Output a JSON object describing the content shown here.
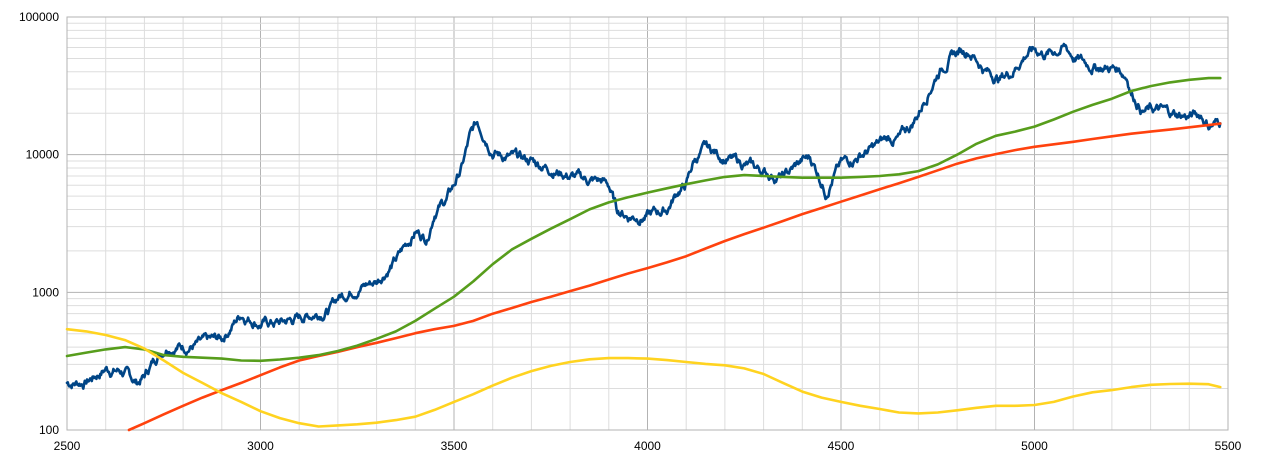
{
  "chart_data": {
    "type": "line",
    "title": "",
    "xlabel": "",
    "ylabel": "",
    "y_scale": "log",
    "xlim": [
      2500,
      5500
    ],
    "ylim": [
      100,
      100000
    ],
    "grid": true,
    "legend": "none",
    "x_ticks": [
      "2500",
      "3000",
      "3500",
      "4000",
      "4500",
      "5000",
      "5500"
    ],
    "y_ticks": [
      "100",
      "1000",
      "10000",
      "100000"
    ],
    "series": [
      {
        "color": "#004586",
        "style": "noisy",
        "x": [
          2500,
          2550,
          2600,
          2640,
          2680,
          2700,
          2730,
          2760,
          2800,
          2850,
          2900,
          2950,
          2960,
          2980,
          3000,
          3050,
          3100,
          3150,
          3180,
          3200,
          3250,
          3300,
          3320,
          3350,
          3400,
          3430,
          3450,
          3480,
          3500,
          3520,
          3540,
          3560,
          3580,
          3600,
          3620,
          3650,
          3700,
          3750,
          3800,
          3850,
          3880,
          3900,
          3920,
          3950,
          4000,
          4050,
          4080,
          4100,
          4120,
          4150,
          4170,
          4200,
          4250,
          4300,
          4350,
          4400,
          4420,
          4440,
          4460,
          4480,
          4500,
          4550,
          4580,
          4600,
          4620,
          4650,
          4680,
          4700,
          4720,
          4750,
          4780,
          4800,
          4830,
          4850,
          4870,
          4890,
          4910,
          4940,
          4980,
          5000,
          5030,
          5060,
          5080,
          5100,
          5140,
          5180,
          5220,
          5240,
          5250,
          5280,
          5320,
          5370,
          5400,
          5430,
          5450,
          5470,
          5480
        ],
        "values": [
          220,
          225,
          280,
          270,
          220,
          245,
          340,
          420,
          410,
          420,
          460,
          700,
          680,
          640,
          600,
          600,
          650,
          720,
          760,
          920,
          1100,
          1200,
          1400,
          1700,
          2800,
          2500,
          4000,
          4700,
          6000,
          8000,
          13000,
          17000,
          14000,
          11000,
          10000,
          9500,
          9000,
          8000,
          7000,
          6500,
          6400,
          6000,
          4000,
          3600,
          3600,
          4000,
          5500,
          6000,
          9000,
          11000,
          10500,
          9500,
          8500,
          7500,
          6800,
          9000,
          9500,
          7500,
          5500,
          7000,
          8500,
          10000,
          11000,
          12000,
          13000,
          13000,
          16000,
          20000,
          27000,
          40000,
          50000,
          55000,
          58000,
          50000,
          42000,
          38000,
          36000,
          40000,
          55000,
          58000,
          54000,
          58000,
          60000,
          52000,
          45000,
          43000,
          42000,
          37000,
          29000,
          21000,
          21000,
          19500,
          19000,
          19500,
          16500,
          17000,
          17500
        ]
      },
      {
        "color": "#ff420e",
        "style": "smooth",
        "x": [
          2660,
          2700,
          2750,
          2800,
          2850,
          2900,
          2950,
          3000,
          3050,
          3100,
          3150,
          3200,
          3250,
          3300,
          3350,
          3400,
          3450,
          3500,
          3550,
          3600,
          3650,
          3700,
          3750,
          3800,
          3850,
          3900,
          3950,
          4000,
          4050,
          4100,
          4150,
          4200,
          4250,
          4300,
          4350,
          4400,
          4450,
          4500,
          4550,
          4600,
          4650,
          4700,
          4750,
          4800,
          4850,
          4900,
          4950,
          5000,
          5050,
          5100,
          5150,
          5200,
          5250,
          5300,
          5350,
          5400,
          5450,
          5480
        ],
        "values": [
          100,
          112,
          130,
          150,
          172,
          195,
          220,
          250,
          285,
          320,
          345,
          370,
          400,
          430,
          465,
          505,
          540,
          570,
          620,
          700,
          770,
          850,
          930,
          1020,
          1120,
          1240,
          1370,
          1500,
          1650,
          1830,
          2080,
          2360,
          2650,
          2950,
          3300,
          3700,
          4100,
          4550,
          5050,
          5600,
          6200,
          6900,
          7700,
          8600,
          9400,
          10100,
          10800,
          11400,
          11900,
          12400,
          13000,
          13600,
          14200,
          14700,
          15200,
          15800,
          16400,
          16800
        ]
      },
      {
        "color": "#579d1c",
        "style": "smooth",
        "x": [
          2500,
          2550,
          2600,
          2650,
          2700,
          2750,
          2800,
          2850,
          2900,
          2950,
          3000,
          3050,
          3100,
          3150,
          3200,
          3250,
          3300,
          3350,
          3400,
          3450,
          3500,
          3550,
          3600,
          3650,
          3700,
          3750,
          3800,
          3850,
          3900,
          3950,
          4000,
          4050,
          4100,
          4150,
          4200,
          4250,
          4300,
          4350,
          4400,
          4450,
          4500,
          4550,
          4600,
          4650,
          4700,
          4750,
          4800,
          4850,
          4900,
          4950,
          5000,
          5050,
          5100,
          5150,
          5200,
          5250,
          5300,
          5350,
          5400,
          5450,
          5480
        ],
        "values": [
          345,
          365,
          385,
          400,
          385,
          350,
          340,
          335,
          330,
          320,
          318,
          325,
          335,
          350,
          375,
          410,
          460,
          520,
          620,
          760,
          930,
          1200,
          1600,
          2050,
          2450,
          2900,
          3400,
          4000,
          4500,
          4900,
          5300,
          5700,
          6100,
          6500,
          6900,
          7100,
          7000,
          6900,
          6800,
          6800,
          6800,
          6900,
          7000,
          7200,
          7600,
          8500,
          10000,
          12000,
          13700,
          14700,
          16000,
          18000,
          20500,
          23000,
          25500,
          29000,
          31500,
          33500,
          35000,
          36000,
          36000
        ]
      },
      {
        "color": "#ffd320",
        "style": "smooth",
        "x": [
          2500,
          2550,
          2600,
          2650,
          2700,
          2750,
          2800,
          2850,
          2900,
          2950,
          3000,
          3050,
          3100,
          3150,
          3200,
          3250,
          3300,
          3350,
          3400,
          3450,
          3500,
          3550,
          3600,
          3650,
          3700,
          3750,
          3800,
          3850,
          3900,
          3950,
          4000,
          4050,
          4100,
          4150,
          4200,
          4250,
          4300,
          4350,
          4400,
          4450,
          4500,
          4550,
          4600,
          4650,
          4700,
          4750,
          4800,
          4850,
          4900,
          4950,
          5000,
          5050,
          5100,
          5150,
          5200,
          5250,
          5300,
          5350,
          5400,
          5450,
          5480
        ],
        "values": [
          540,
          520,
          490,
          450,
          390,
          320,
          260,
          220,
          185,
          160,
          137,
          122,
          112,
          106,
          108,
          110,
          113,
          118,
          125,
          140,
          160,
          182,
          210,
          240,
          268,
          292,
          312,
          326,
          333,
          333,
          330,
          322,
          312,
          302,
          295,
          280,
          255,
          220,
          190,
          172,
          160,
          150,
          142,
          134,
          132,
          134,
          139,
          145,
          150,
          150,
          152,
          160,
          175,
          188,
          195,
          205,
          213,
          216,
          217,
          215,
          205
        ]
      }
    ]
  }
}
